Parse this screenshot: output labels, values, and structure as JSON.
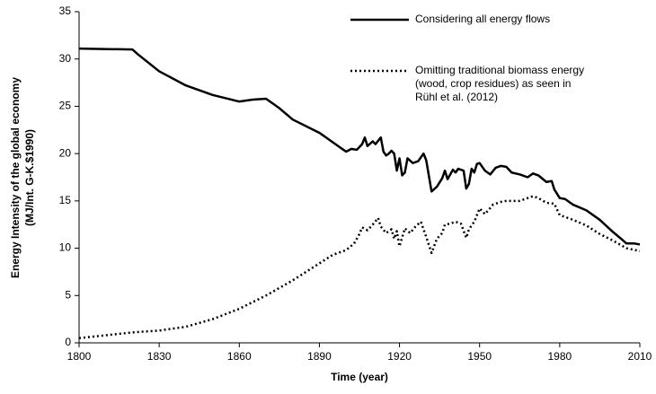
{
  "chart_data": {
    "type": "line",
    "xlabel": "Time (year)",
    "ylabel": [
      "Energy Intensity of the global economy",
      "(MJ/Int. G-K.$1990)"
    ],
    "xlim": [
      1800,
      2010
    ],
    "xticks": [
      1800,
      1830,
      1860,
      1890,
      1920,
      1950,
      1980,
      2010
    ],
    "ylim": [
      0,
      35
    ],
    "yticks": [
      0,
      5,
      10,
      15,
      20,
      25,
      30,
      35
    ],
    "grid": false,
    "series": [
      {
        "name": "Considering all energy flows",
        "color": "#000000",
        "dash": "solid",
        "x": [
          1800,
          1820,
          1822,
          1830,
          1840,
          1850,
          1860,
          1865,
          1870,
          1875,
          1880,
          1890,
          1895,
          1900,
          1902,
          1904,
          1906,
          1907,
          1908,
          1910,
          1911,
          1913,
          1914,
          1915,
          1916,
          1917,
          1918,
          1919,
          1920,
          1921,
          1922,
          1923,
          1925,
          1927,
          1929,
          1930,
          1932,
          1934,
          1936,
          1937,
          1938,
          1940,
          1941,
          1942,
          1944,
          1945,
          1946,
          1947,
          1948,
          1949,
          1950,
          1952,
          1954,
          1956,
          1958,
          1960,
          1962,
          1965,
          1968,
          1970,
          1972,
          1975,
          1977,
          1978,
          1980,
          1982,
          1985,
          1990,
          1995,
          2000,
          2003,
          2005,
          2008,
          2010
        ],
        "values": [
          31.1,
          31.0,
          30.5,
          28.7,
          27.2,
          26.2,
          25.5,
          25.7,
          25.8,
          24.8,
          23.6,
          22.2,
          21.2,
          20.2,
          20.5,
          20.4,
          21.0,
          21.7,
          20.8,
          21.3,
          21.0,
          21.7,
          20.2,
          19.8,
          20.0,
          20.3,
          20.0,
          18.2,
          19.5,
          17.7,
          18.0,
          19.5,
          19.0,
          19.2,
          20.0,
          19.3,
          16.0,
          16.5,
          17.4,
          18.2,
          17.3,
          18.3,
          18.0,
          18.4,
          18.2,
          16.3,
          16.8,
          18.4,
          18.0,
          18.9,
          19.0,
          18.2,
          17.8,
          18.5,
          18.7,
          18.6,
          18.0,
          17.8,
          17.5,
          17.9,
          17.7,
          17.0,
          17.1,
          16.2,
          15.3,
          15.2,
          14.6,
          14.0,
          13.0,
          11.7,
          11.0,
          10.5,
          10.5,
          10.4
        ]
      },
      {
        "name": "Omitting traditional biomass energy\n(wood, crop residues) as seen in\nRühl et al. (2012)",
        "color": "#000000",
        "dash": "dotted",
        "x": [
          1800,
          1810,
          1820,
          1830,
          1840,
          1850,
          1860,
          1870,
          1880,
          1890,
          1895,
          1900,
          1903,
          1905,
          1906,
          1908,
          1910,
          1912,
          1913,
          1915,
          1917,
          1918,
          1919,
          1920,
          1922,
          1924,
          1926,
          1928,
          1930,
          1932,
          1934,
          1936,
          1937,
          1939,
          1941,
          1943,
          1945,
          1946,
          1948,
          1950,
          1952,
          1955,
          1958,
          1960,
          1965,
          1970,
          1972,
          1975,
          1978,
          1980,
          1985,
          1990,
          1995,
          2000,
          2005,
          2010
        ],
        "values": [
          0.5,
          0.8,
          1.1,
          1.3,
          1.7,
          2.5,
          3.6,
          5.0,
          6.6,
          8.4,
          9.3,
          9.8,
          10.5,
          11.5,
          12.2,
          11.9,
          12.5,
          13.2,
          12.3,
          11.6,
          12.0,
          11.0,
          11.8,
          10.2,
          12.1,
          11.6,
          12.3,
          12.8,
          11.2,
          9.5,
          11.0,
          11.6,
          12.5,
          12.6,
          12.8,
          12.6,
          11.1,
          12.0,
          12.8,
          14.2,
          13.6,
          14.6,
          14.9,
          15.0,
          15.0,
          15.5,
          15.3,
          14.8,
          14.7,
          13.5,
          13.0,
          12.4,
          11.5,
          10.8,
          10.0,
          9.7
        ]
      }
    ]
  }
}
